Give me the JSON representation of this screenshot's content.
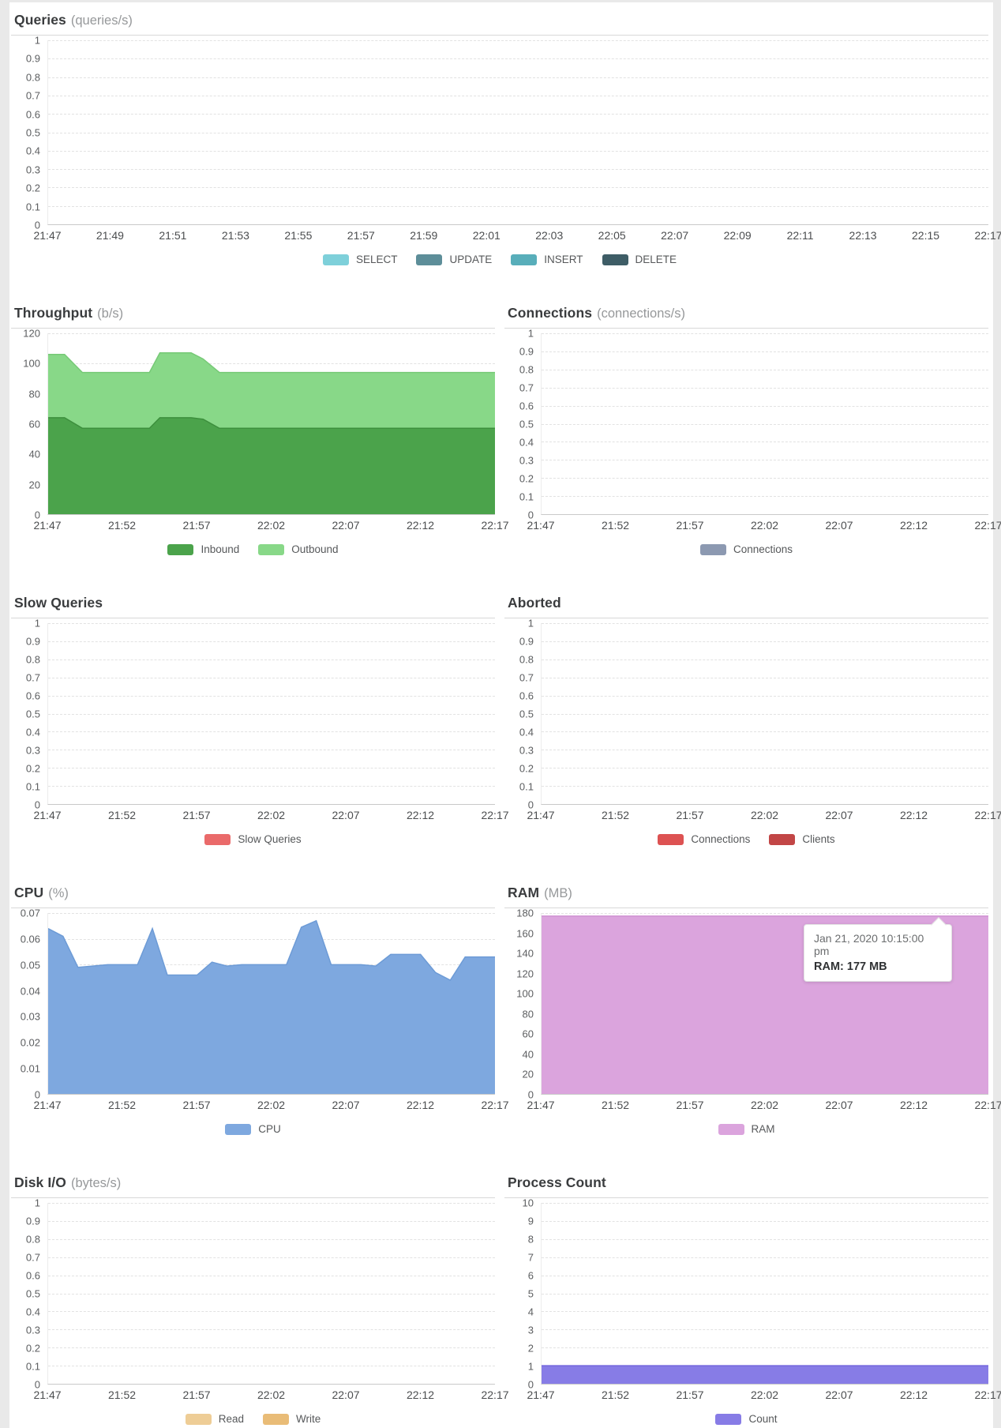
{
  "page": {
    "background": "#e9e9e9",
    "panel_background": "#ffffff"
  },
  "chart_data": [
    {
      "id": "queries",
      "type": "area",
      "title": "Queries",
      "unit": "(queries/s)",
      "ylim": [
        0,
        1
      ],
      "y_ticks": [
        "1",
        "0.9",
        "0.8",
        "0.7",
        "0.6",
        "0.5",
        "0.4",
        "0.3",
        "0.2",
        "0.1",
        "0"
      ],
      "x_max": 30,
      "x_labels": [
        "21:47",
        "21:49",
        "21:51",
        "21:53",
        "21:55",
        "21:57",
        "21:59",
        "22:01",
        "22:03",
        "22:05",
        "22:07",
        "22:09",
        "22:11",
        "22:13",
        "22:15",
        "22:17"
      ],
      "grid": "dashed-horizontal",
      "legend_position": "bottom",
      "series": [
        {
          "name": "SELECT",
          "color": "#7ed0da",
          "values": []
        },
        {
          "name": "UPDATE",
          "color": "#5d8e99",
          "values": []
        },
        {
          "name": "INSERT",
          "color": "#58aeba",
          "values": []
        },
        {
          "name": "DELETE",
          "color": "#3e5d66",
          "values": []
        }
      ]
    },
    {
      "id": "throughput",
      "type": "area",
      "title": "Throughput",
      "unit": "(b/s)",
      "stacked": true,
      "ylim": [
        0,
        120
      ],
      "y_ticks": [
        "120",
        "100",
        "80",
        "60",
        "40",
        "20",
        "0"
      ],
      "x_max": 30,
      "x_labels": [
        "21:47",
        "21:52",
        "21:57",
        "22:02",
        "22:07",
        "22:12",
        "22:17"
      ],
      "grid": "dashed-horizontal",
      "legend_position": "bottom",
      "series": [
        {
          "name": "Inbound",
          "color": "#4ba34b",
          "stroke": "#3d8f3d",
          "points": [
            [
              0,
              64
            ],
            [
              1.1,
              64
            ],
            [
              2.3,
              57
            ],
            [
              6.8,
              57
            ],
            [
              7.5,
              64
            ],
            [
              9.6,
              64
            ],
            [
              10.4,
              63
            ],
            [
              11.5,
              57
            ],
            [
              30,
              57
            ]
          ]
        },
        {
          "name": "Outbound",
          "color": "#88d888",
          "stroke": "#76c976",
          "points": [
            [
              0,
              42
            ],
            [
              1.1,
              42
            ],
            [
              2.3,
              37
            ],
            [
              6.8,
              37
            ],
            [
              7.5,
              43
            ],
            [
              9.6,
              43
            ],
            [
              10.4,
              40
            ],
            [
              11.5,
              37
            ],
            [
              30,
              37
            ]
          ]
        }
      ]
    },
    {
      "id": "connections",
      "type": "area",
      "title": "Connections",
      "unit": "(connections/s)",
      "ylim": [
        0,
        1
      ],
      "y_ticks": [
        "1",
        "0.9",
        "0.8",
        "0.7",
        "0.6",
        "0.5",
        "0.4",
        "0.3",
        "0.2",
        "0.1",
        "0"
      ],
      "x_max": 30,
      "x_labels": [
        "21:47",
        "21:52",
        "21:57",
        "22:02",
        "22:07",
        "22:12",
        "22:17"
      ],
      "grid": "dashed-horizontal",
      "legend_position": "bottom",
      "series": [
        {
          "name": "Connections",
          "color": "#8c99b1",
          "values": []
        }
      ]
    },
    {
      "id": "slow_queries",
      "type": "area",
      "title": "Slow Queries",
      "unit": "",
      "ylim": [
        0,
        1
      ],
      "y_ticks": [
        "1",
        "0.9",
        "0.8",
        "0.7",
        "0.6",
        "0.5",
        "0.4",
        "0.3",
        "0.2",
        "0.1",
        "0"
      ],
      "x_max": 30,
      "x_labels": [
        "21:47",
        "21:52",
        "21:57",
        "22:02",
        "22:07",
        "22:12",
        "22:17"
      ],
      "grid": "dashed-horizontal",
      "legend_position": "bottom",
      "series": [
        {
          "name": "Slow Queries",
          "color": "#ea6a6a",
          "values": []
        }
      ]
    },
    {
      "id": "aborted",
      "type": "area",
      "title": "Aborted",
      "unit": "",
      "ylim": [
        0,
        1
      ],
      "y_ticks": [
        "1",
        "0.9",
        "0.8",
        "0.7",
        "0.6",
        "0.5",
        "0.4",
        "0.3",
        "0.2",
        "0.1",
        "0"
      ],
      "x_max": 30,
      "x_labels": [
        "21:47",
        "21:52",
        "21:57",
        "22:02",
        "22:07",
        "22:12",
        "22:17"
      ],
      "grid": "dashed-horizontal",
      "legend_position": "bottom",
      "series": [
        {
          "name": "Connections",
          "color": "#dd5252",
          "values": []
        },
        {
          "name": "Clients",
          "color": "#c24646",
          "values": []
        }
      ]
    },
    {
      "id": "cpu",
      "type": "area",
      "title": "CPU",
      "unit": "(%)",
      "ylim": [
        0,
        0.07
      ],
      "y_ticks": [
        "0.07",
        "0.06",
        "0.05",
        "0.04",
        "0.03",
        "0.02",
        "0.01",
        "0"
      ],
      "x_max": 30,
      "x_labels": [
        "21:47",
        "21:52",
        "21:57",
        "22:02",
        "22:07",
        "22:12",
        "22:17"
      ],
      "grid": "dashed-horizontal",
      "legend_position": "bottom",
      "series": [
        {
          "name": "CPU",
          "color": "#7ea8df",
          "stroke": "#6d9bd6",
          "values": [
            0.064,
            0.061,
            0.049,
            0.0495,
            0.05,
            0.05,
            0.05,
            0.064,
            0.046,
            0.046,
            0.046,
            0.051,
            0.0495,
            0.05,
            0.05,
            0.05,
            0.05,
            0.0645,
            0.067,
            0.05,
            0.05,
            0.05,
            0.0495,
            0.054,
            0.054,
            0.054,
            0.047,
            0.044,
            0.053,
            0.053,
            0.053
          ]
        }
      ]
    },
    {
      "id": "ram",
      "type": "area",
      "title": "RAM",
      "unit": "(MB)",
      "ylim": [
        0,
        180
      ],
      "y_ticks": [
        "180",
        "160",
        "140",
        "120",
        "100",
        "80",
        "60",
        "40",
        "20",
        "0"
      ],
      "x_max": 30,
      "x_labels": [
        "21:47",
        "21:52",
        "21:57",
        "22:02",
        "22:07",
        "22:12",
        "22:17"
      ],
      "grid": "dashed-horizontal",
      "legend_position": "bottom",
      "series": [
        {
          "name": "RAM",
          "color": "#dba4dd",
          "stroke": "#cf90d2",
          "points": [
            [
              0,
              177
            ],
            [
              30,
              177
            ]
          ]
        }
      ],
      "tooltip": {
        "date": "Jan 21, 2020 10:15:00 pm",
        "value": "RAM: 177 MB"
      }
    },
    {
      "id": "disk_io",
      "type": "area",
      "title": "Disk I/O",
      "unit": "(bytes/s)",
      "ylim": [
        0,
        1
      ],
      "y_ticks": [
        "1",
        "0.9",
        "0.8",
        "0.7",
        "0.6",
        "0.5",
        "0.4",
        "0.3",
        "0.2",
        "0.1",
        "0"
      ],
      "x_max": 30,
      "x_labels": [
        "21:47",
        "21:52",
        "21:57",
        "22:02",
        "22:07",
        "22:12",
        "22:17"
      ],
      "grid": "dashed-horizontal",
      "legend_position": "bottom",
      "series": [
        {
          "name": "Read",
          "color": "#eecd96",
          "values": []
        },
        {
          "name": "Write",
          "color": "#e9bc77",
          "values": []
        }
      ]
    },
    {
      "id": "process_count",
      "type": "area",
      "title": "Process Count",
      "unit": "",
      "ylim": [
        0,
        10
      ],
      "y_ticks": [
        "10",
        "9",
        "8",
        "7",
        "6",
        "5",
        "4",
        "3",
        "2",
        "1",
        "0"
      ],
      "x_max": 30,
      "x_labels": [
        "21:47",
        "21:52",
        "21:57",
        "22:02",
        "22:07",
        "22:12",
        "22:17"
      ],
      "grid": "dashed-horizontal",
      "legend_position": "bottom",
      "series": [
        {
          "name": "Count",
          "color": "#877ce6",
          "stroke": "#7165dc",
          "points": [
            [
              0,
              1
            ],
            [
              30,
              1
            ]
          ]
        }
      ]
    }
  ]
}
